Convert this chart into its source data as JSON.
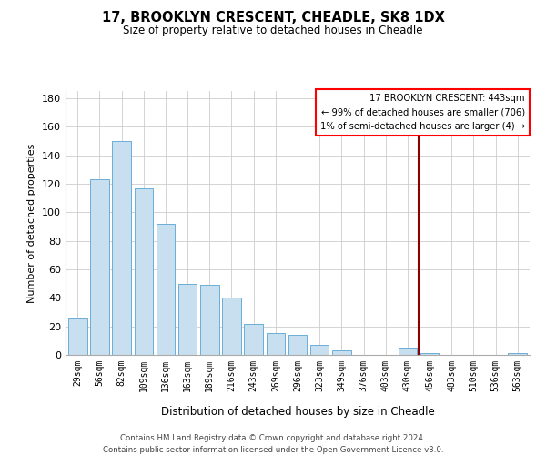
{
  "title": "17, BROOKLYN CRESCENT, CHEADLE, SK8 1DX",
  "subtitle": "Size of property relative to detached houses in Cheadle",
  "xlabel": "Distribution of detached houses by size in Cheadle",
  "ylabel": "Number of detached properties",
  "bar_labels": [
    "29sqm",
    "56sqm",
    "82sqm",
    "109sqm",
    "136sqm",
    "163sqm",
    "189sqm",
    "216sqm",
    "243sqm",
    "269sqm",
    "296sqm",
    "323sqm",
    "349sqm",
    "376sqm",
    "403sqm",
    "430sqm",
    "456sqm",
    "483sqm",
    "510sqm",
    "536sqm",
    "563sqm"
  ],
  "bar_values": [
    26,
    123,
    150,
    117,
    92,
    50,
    49,
    40,
    22,
    15,
    14,
    7,
    3,
    0,
    0,
    5,
    1,
    0,
    0,
    0,
    1
  ],
  "bar_color": "#c8dff0",
  "bar_edge_color": "#6baed6",
  "vline_x": 15.5,
  "vline_color": "#8b0000",
  "ylim": [
    0,
    185
  ],
  "yticks": [
    0,
    20,
    40,
    60,
    80,
    100,
    120,
    140,
    160,
    180
  ],
  "legend_title": "17 BROOKLYN CRESCENT: 443sqm",
  "legend_line1": "← 99% of detached houses are smaller (706)",
  "legend_line2": "1% of semi-detached houses are larger (4) →",
  "footer_line1": "Contains HM Land Registry data © Crown copyright and database right 2024.",
  "footer_line2": "Contains public sector information licensed under the Open Government Licence v3.0."
}
